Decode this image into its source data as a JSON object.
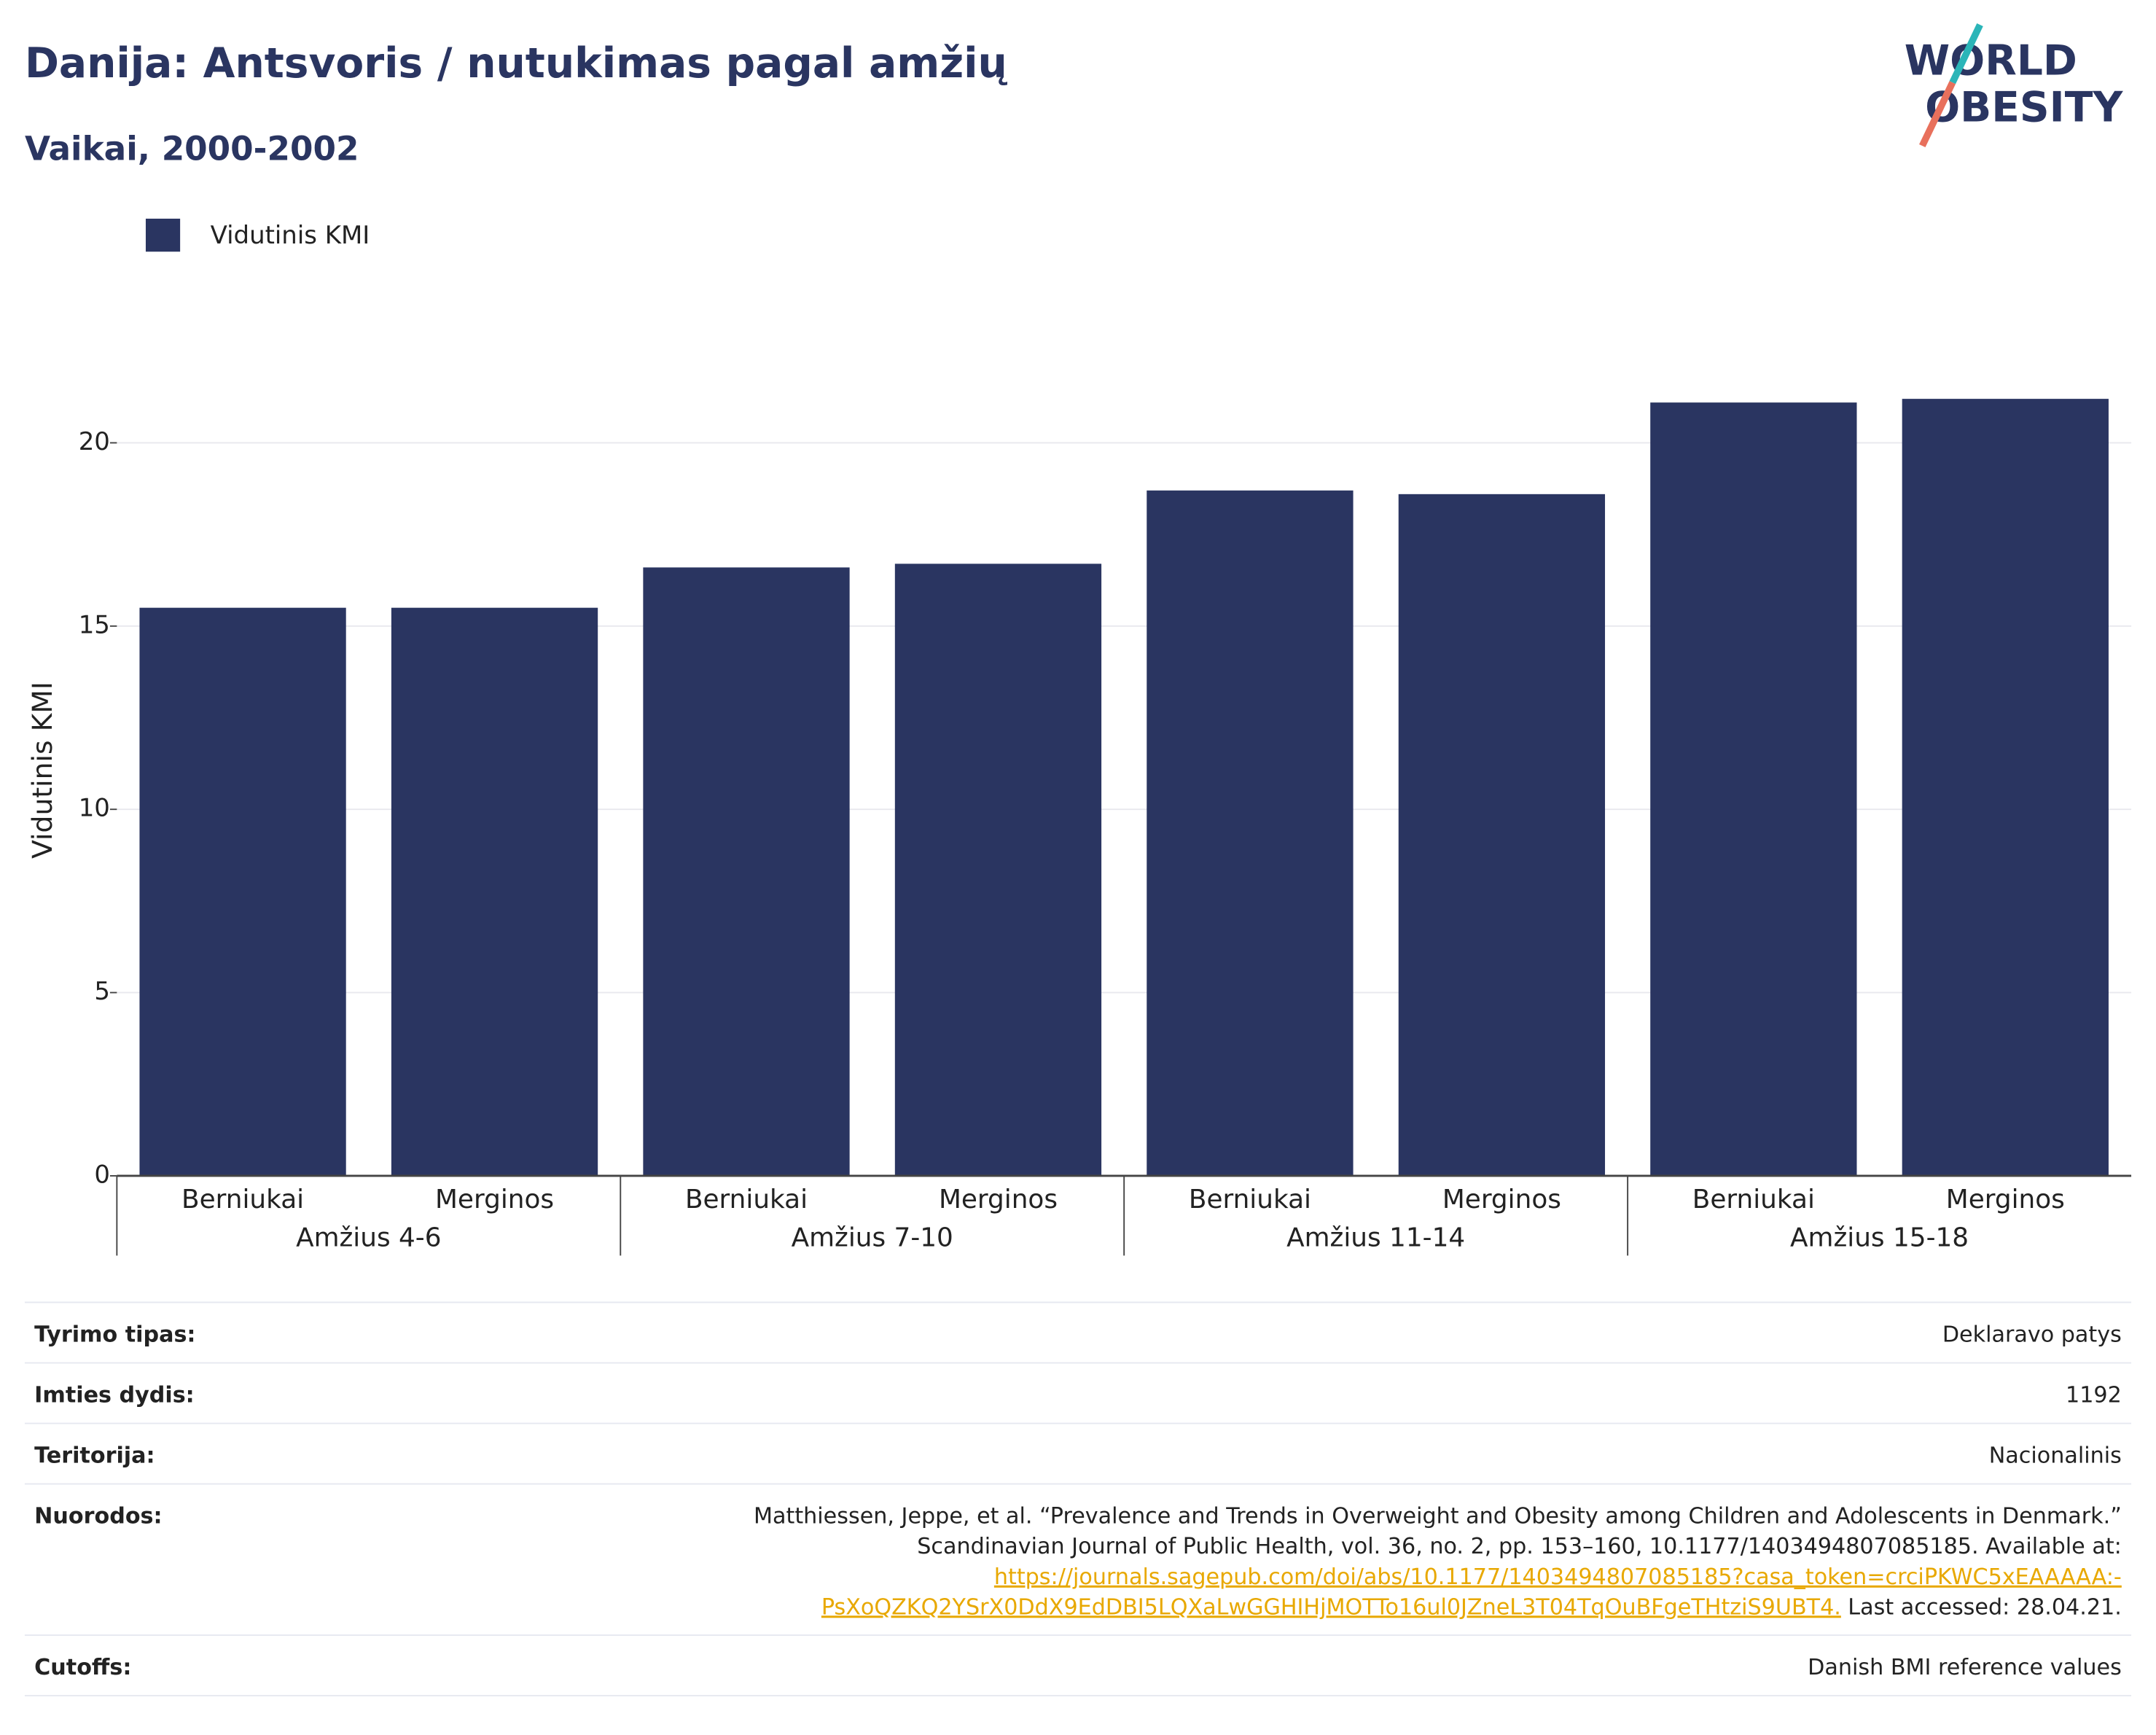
{
  "chart_data": {
    "type": "bar",
    "title": "Danija: Antsvoris / nutukimas pagal amžių",
    "subtitle": "Vaikai, 2000-2002",
    "y_label": "Vidutinis KMI",
    "categories": [
      "Berniukai",
      "Merginos",
      "Berniukai",
      "Merginos",
      "Berniukai",
      "Merginos",
      "Berniukai",
      "Merginos"
    ],
    "groups": [
      "Amžius 4-6",
      "Amžius 7-10",
      "Amžius 11-14",
      "Amžius 15-18"
    ],
    "series": [
      {
        "name": "Vidutinis KMI",
        "color": "#2a3561",
        "values": [
          15.5,
          15.5,
          16.6,
          16.7,
          18.7,
          18.6,
          21.1,
          21.2
        ]
      }
    ],
    "ylim": [
      0,
      23.5
    ],
    "yticks": [
      0,
      5,
      10,
      15,
      20
    ],
    "grid": true,
    "legend": "top-left"
  },
  "logo": {
    "line1": "WORLD",
    "line2": "OBESITY"
  },
  "table": {
    "rows": [
      {
        "label": "Tyrimo tipas:",
        "value": "Deklaravo patys"
      },
      {
        "label": "Imties dydis:",
        "value": "1192"
      },
      {
        "label": "Teritorija:",
        "value": "Nacionalinis"
      },
      {
        "label": "Nuorodos:",
        "reference": {
          "lines": [
            "Matthiessen, Jeppe, et al. “Prevalence and Trends in Overweight and Obesity among Children and Adolescents in Denmark.”",
            "Scandinavian Journal of Public Health, vol. 36, no. 2, pp. 153–160, 10.1177/1403494807085185. Available at:"
          ],
          "link": [
            "https://journals.sagepub.com/doi/abs/10.1177/1403494807085185?casa_token=crciPKWC5xEAAAAA:-",
            "PsXoQZKQ2YSrX0DdX9EdDBI5LQXaLwGGHIHjMOTTo16ul0JZneL3T04TqOuBFgeTHtziS9UBT4."
          ],
          "accessed": "Last accessed: 28.04.21."
        }
      },
      {
        "label": "Cutoffs:",
        "value": "Danish BMI reference values"
      }
    ]
  }
}
